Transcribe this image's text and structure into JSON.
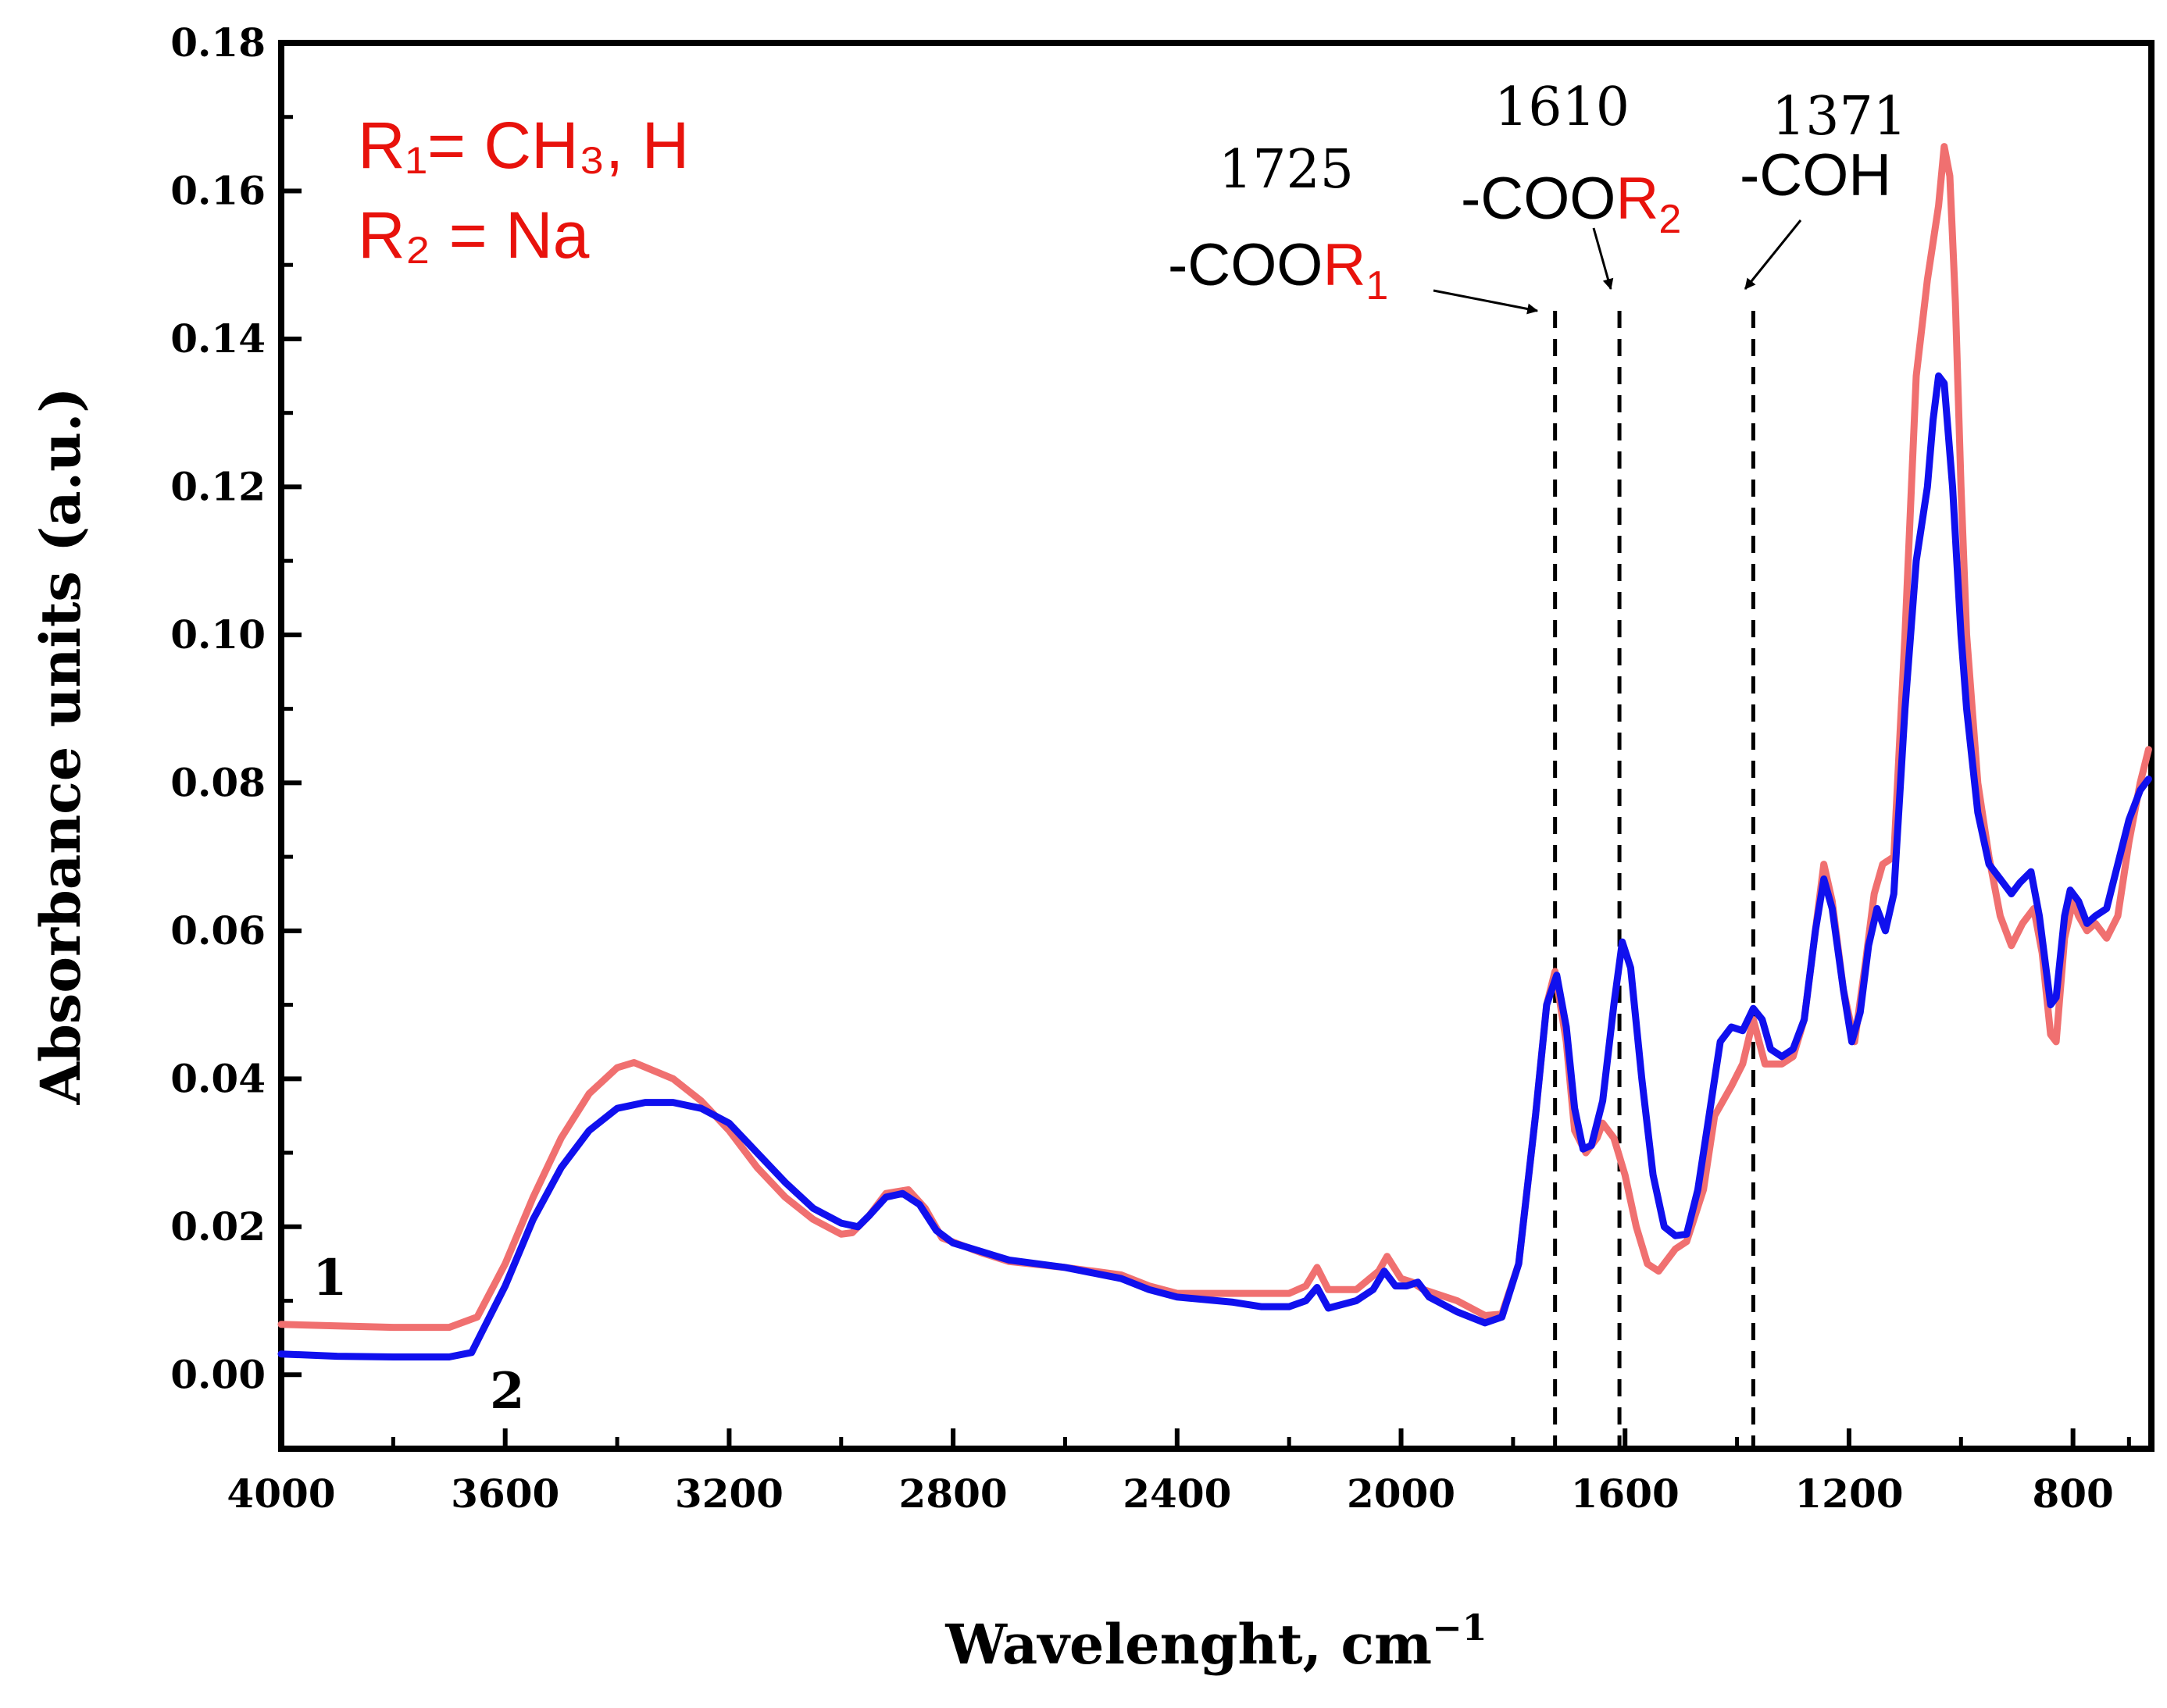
{
  "chart_data": {
    "type": "line",
    "xlabel": "Wavelenght, cm",
    "xlabel_sup": "−1",
    "ylabel": "Absorbance units (a.u.)",
    "xlim": [
      4000,
      660
    ],
    "ylim": [
      -0.01,
      0.18
    ],
    "x_ticks": [
      4000,
      3600,
      3200,
      2800,
      2400,
      2000,
      1600,
      1200,
      800
    ],
    "x_tick_labels": [
      "4000",
      "3600",
      "3200",
      "2800",
      "2400",
      "2000",
      "1600",
      "1200",
      "800"
    ],
    "y_ticks": [
      0.0,
      0.02,
      0.04,
      0.06,
      0.08,
      0.1,
      0.12,
      0.14,
      0.16,
      0.18
    ],
    "y_tick_labels": [
      "0.00",
      "0.02",
      "0.04",
      "0.06",
      "0.08",
      "0.10",
      "0.12",
      "0.14",
      "0.16",
      "0.18"
    ],
    "grid": false,
    "legend_text": {
      "r1": "R₁= CH₃, H",
      "r2": "R₂ = Na"
    },
    "series": [
      {
        "name": "1",
        "color": "#f07070",
        "points": [
          [
            4000,
            0.0068
          ],
          [
            3900,
            0.0066
          ],
          [
            3800,
            0.0064
          ],
          [
            3700,
            0.0064
          ],
          [
            3650,
            0.0078
          ],
          [
            3600,
            0.015
          ],
          [
            3550,
            0.024
          ],
          [
            3500,
            0.032
          ],
          [
            3450,
            0.038
          ],
          [
            3400,
            0.0415
          ],
          [
            3370,
            0.0422
          ],
          [
            3300,
            0.04
          ],
          [
            3250,
            0.037
          ],
          [
            3200,
            0.033
          ],
          [
            3150,
            0.028
          ],
          [
            3100,
            0.024
          ],
          [
            3050,
            0.021
          ],
          [
            3000,
            0.019
          ],
          [
            2980,
            0.0192
          ],
          [
            2950,
            0.0215
          ],
          [
            2920,
            0.0245
          ],
          [
            2880,
            0.025
          ],
          [
            2850,
            0.0225
          ],
          [
            2820,
            0.0185
          ],
          [
            2750,
            0.0165
          ],
          [
            2700,
            0.0153
          ],
          [
            2600,
            0.0145
          ],
          [
            2500,
            0.0135
          ],
          [
            2450,
            0.012
          ],
          [
            2400,
            0.011
          ],
          [
            2300,
            0.011
          ],
          [
            2200,
            0.011
          ],
          [
            2170,
            0.012
          ],
          [
            2150,
            0.0145
          ],
          [
            2130,
            0.0115
          ],
          [
            2080,
            0.0115
          ],
          [
            2040,
            0.014
          ],
          [
            2025,
            0.016
          ],
          [
            2000,
            0.013
          ],
          [
            1980,
            0.0125
          ],
          [
            1960,
            0.0115
          ],
          [
            1900,
            0.01
          ],
          [
            1850,
            0.008
          ],
          [
            1820,
            0.0082
          ],
          [
            1790,
            0.015
          ],
          [
            1760,
            0.035
          ],
          [
            1740,
            0.05
          ],
          [
            1725,
            0.0545
          ],
          [
            1705,
            0.045
          ],
          [
            1690,
            0.033
          ],
          [
            1670,
            0.03
          ],
          [
            1650,
            0.032
          ],
          [
            1640,
            0.034
          ],
          [
            1620,
            0.032
          ],
          [
            1600,
            0.027
          ],
          [
            1580,
            0.02
          ],
          [
            1560,
            0.015
          ],
          [
            1540,
            0.014
          ],
          [
            1510,
            0.017
          ],
          [
            1490,
            0.018
          ],
          [
            1460,
            0.025
          ],
          [
            1440,
            0.035
          ],
          [
            1410,
            0.039
          ],
          [
            1390,
            0.042
          ],
          [
            1371,
            0.048
          ],
          [
            1350,
            0.042
          ],
          [
            1320,
            0.042
          ],
          [
            1300,
            0.043
          ],
          [
            1280,
            0.048
          ],
          [
            1260,
            0.06
          ],
          [
            1245,
            0.069
          ],
          [
            1230,
            0.064
          ],
          [
            1210,
            0.052
          ],
          [
            1190,
            0.045
          ],
          [
            1170,
            0.056
          ],
          [
            1155,
            0.065
          ],
          [
            1140,
            0.069
          ],
          [
            1120,
            0.07
          ],
          [
            1100,
            0.1
          ],
          [
            1080,
            0.135
          ],
          [
            1060,
            0.148
          ],
          [
            1040,
            0.158
          ],
          [
            1030,
            0.166
          ],
          [
            1020,
            0.162
          ],
          [
            1010,
            0.145
          ],
          [
            1000,
            0.12
          ],
          [
            990,
            0.1
          ],
          [
            970,
            0.08
          ],
          [
            950,
            0.07
          ],
          [
            930,
            0.062
          ],
          [
            910,
            0.058
          ],
          [
            890,
            0.061
          ],
          [
            870,
            0.063
          ],
          [
            855,
            0.057
          ],
          [
            840,
            0.046
          ],
          [
            830,
            0.045
          ],
          [
            815,
            0.059
          ],
          [
            800,
            0.064
          ],
          [
            790,
            0.062
          ],
          [
            775,
            0.06
          ],
          [
            760,
            0.061
          ],
          [
            740,
            0.059
          ],
          [
            720,
            0.062
          ],
          [
            700,
            0.072
          ],
          [
            680,
            0.08
          ],
          [
            665,
            0.0845
          ]
        ]
      },
      {
        "name": "2",
        "color": "#1010ee",
        "points": [
          [
            4000,
            0.0028
          ],
          [
            3900,
            0.0025
          ],
          [
            3800,
            0.0024
          ],
          [
            3700,
            0.0024
          ],
          [
            3660,
            0.003
          ],
          [
            3640,
            0.006
          ],
          [
            3600,
            0.012
          ],
          [
            3550,
            0.021
          ],
          [
            3500,
            0.028
          ],
          [
            3450,
            0.033
          ],
          [
            3400,
            0.036
          ],
          [
            3350,
            0.0368
          ],
          [
            3300,
            0.0368
          ],
          [
            3250,
            0.036
          ],
          [
            3200,
            0.034
          ],
          [
            3150,
            0.03
          ],
          [
            3100,
            0.026
          ],
          [
            3050,
            0.0225
          ],
          [
            3000,
            0.0205
          ],
          [
            2970,
            0.02
          ],
          [
            2950,
            0.0215
          ],
          [
            2920,
            0.024
          ],
          [
            2890,
            0.0245
          ],
          [
            2860,
            0.023
          ],
          [
            2830,
            0.0195
          ],
          [
            2800,
            0.0178
          ],
          [
            2700,
            0.0155
          ],
          [
            2600,
            0.0145
          ],
          [
            2500,
            0.013
          ],
          [
            2450,
            0.0115
          ],
          [
            2400,
            0.0105
          ],
          [
            2300,
            0.0098
          ],
          [
            2250,
            0.0092
          ],
          [
            2200,
            0.0092
          ],
          [
            2170,
            0.01
          ],
          [
            2150,
            0.0118
          ],
          [
            2130,
            0.009
          ],
          [
            2080,
            0.01
          ],
          [
            2050,
            0.0115
          ],
          [
            2030,
            0.014
          ],
          [
            2010,
            0.012
          ],
          [
            1990,
            0.012
          ],
          [
            1970,
            0.0125
          ],
          [
            1950,
            0.0105
          ],
          [
            1900,
            0.0085
          ],
          [
            1850,
            0.007
          ],
          [
            1820,
            0.0078
          ],
          [
            1790,
            0.015
          ],
          [
            1760,
            0.035
          ],
          [
            1740,
            0.05
          ],
          [
            1722,
            0.054
          ],
          [
            1705,
            0.047
          ],
          [
            1690,
            0.036
          ],
          [
            1675,
            0.0305
          ],
          [
            1660,
            0.031
          ],
          [
            1640,
            0.037
          ],
          [
            1620,
            0.05
          ],
          [
            1605,
            0.0585
          ],
          [
            1590,
            0.055
          ],
          [
            1570,
            0.04
          ],
          [
            1550,
            0.027
          ],
          [
            1530,
            0.02
          ],
          [
            1510,
            0.0188
          ],
          [
            1490,
            0.019
          ],
          [
            1470,
            0.025
          ],
          [
            1450,
            0.035
          ],
          [
            1430,
            0.045
          ],
          [
            1410,
            0.047
          ],
          [
            1390,
            0.0465
          ],
          [
            1371,
            0.0495
          ],
          [
            1355,
            0.048
          ],
          [
            1340,
            0.044
          ],
          [
            1320,
            0.043
          ],
          [
            1300,
            0.044
          ],
          [
            1280,
            0.048
          ],
          [
            1260,
            0.06
          ],
          [
            1245,
            0.067
          ],
          [
            1230,
            0.063
          ],
          [
            1210,
            0.052
          ],
          [
            1195,
            0.045
          ],
          [
            1180,
            0.049
          ],
          [
            1165,
            0.058
          ],
          [
            1150,
            0.063
          ],
          [
            1135,
            0.06
          ],
          [
            1120,
            0.065
          ],
          [
            1100,
            0.09
          ],
          [
            1080,
            0.11
          ],
          [
            1060,
            0.12
          ],
          [
            1050,
            0.129
          ],
          [
            1040,
            0.135
          ],
          [
            1030,
            0.134
          ],
          [
            1015,
            0.12
          ],
          [
            1000,
            0.1
          ],
          [
            990,
            0.09
          ],
          [
            970,
            0.076
          ],
          [
            950,
            0.069
          ],
          [
            930,
            0.067
          ],
          [
            910,
            0.065
          ],
          [
            895,
            0.0665
          ],
          [
            875,
            0.068
          ],
          [
            860,
            0.062
          ],
          [
            840,
            0.05
          ],
          [
            830,
            0.051
          ],
          [
            815,
            0.062
          ],
          [
            805,
            0.0655
          ],
          [
            790,
            0.064
          ],
          [
            775,
            0.061
          ],
          [
            760,
            0.062
          ],
          [
            740,
            0.063
          ],
          [
            720,
            0.069
          ],
          [
            700,
            0.075
          ],
          [
            680,
            0.079
          ],
          [
            665,
            0.0805
          ]
        ]
      }
    ],
    "annotations": {
      "peak_1725": {
        "number": "1725",
        "group_prefix": "-COO",
        "group_r": "R",
        "group_sub": "1",
        "x": 1725
      },
      "peak_1610": {
        "number": "1610",
        "group_prefix": "-COO",
        "group_r": "R",
        "group_sub": "2",
        "x": 1610
      },
      "peak_1371": {
        "number": "1371",
        "group": "-COH",
        "x": 1371
      }
    },
    "series_labels": {
      "one": "1",
      "two": "2"
    }
  }
}
